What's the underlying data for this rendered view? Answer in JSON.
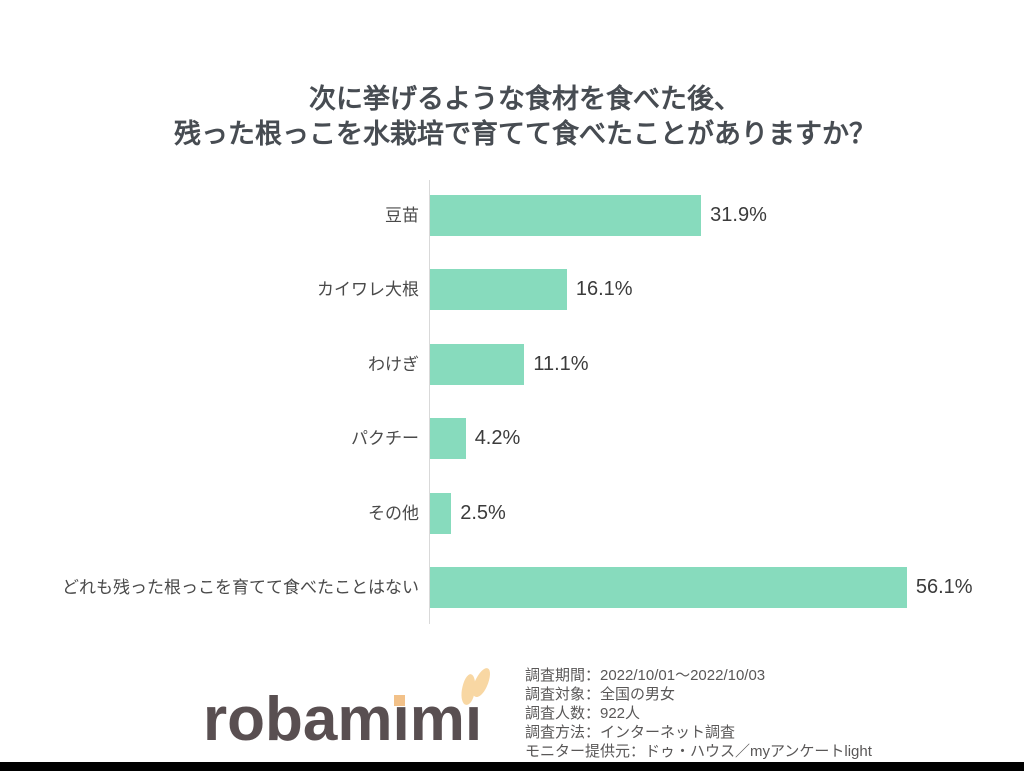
{
  "title": {
    "line1": "次に挙げるような食材を食べた後、",
    "line2": "残った根っこを水栽培で育てて食べたことがありますか？"
  },
  "chart_data": {
    "type": "bar",
    "orientation": "horizontal",
    "title": "次に挙げるような食材を食べた後、残った根っこを水栽培で育てて食べたことがありますか？",
    "categories": [
      "豆苗",
      "カイワレ大根",
      "わけぎ",
      "パクチー",
      "その他",
      "どれも残った根っこを育てて食べたことはない"
    ],
    "values": [
      31.9,
      16.1,
      11.1,
      4.2,
      2.5,
      56.1
    ],
    "value_labels": [
      "31.9%",
      "16.1%",
      "11.1%",
      "4.2%",
      "2.5%",
      "56.1%"
    ],
    "xlabel": "",
    "ylabel": "",
    "xlim": [
      0,
      60
    ],
    "grid": false,
    "legend": false,
    "bar_color": "#87dbbd",
    "axis_color": "#d9d9d9"
  },
  "footer": {
    "logo_text": "robamimi",
    "survey_info": [
      "調査期間：2022/10/01～2022/10/03",
      "調査対象：全国の男女",
      "調査人数：922人",
      "調査方法：インターネット調査",
      "モニター提供元：ドゥ・ハウス／myアンケートlight"
    ]
  },
  "colors": {
    "bar": "#87dbbd",
    "axis_line": "#d9d9d9",
    "title_text": "#474c52",
    "category_text": "#4a4a4a",
    "value_text": "#3b3b3b",
    "footer_text": "#595757",
    "logo_text": "#594f51",
    "logo_square_dot": "#f2c189",
    "logo_ears": "#f8d7a3",
    "bottom_bar": "#000000"
  }
}
